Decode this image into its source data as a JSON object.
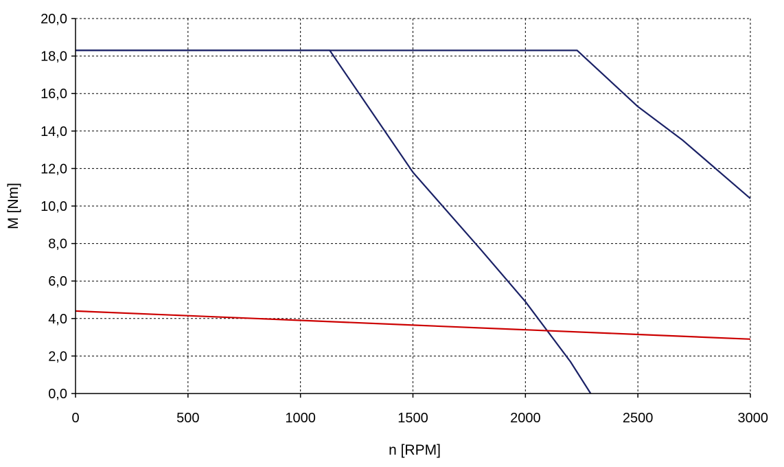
{
  "chart_data": {
    "type": "line",
    "title": "",
    "xlabel": "n [RPM]",
    "ylabel": "M [Nm]",
    "xlim": [
      0,
      3000
    ],
    "ylim": [
      0,
      20
    ],
    "x_ticks": [
      0,
      500,
      1000,
      1500,
      2000,
      2500,
      3000
    ],
    "x_tick_labels": [
      "0",
      "500",
      "1000",
      "1500",
      "2000",
      "2500",
      "3000"
    ],
    "y_ticks": [
      0,
      2,
      4,
      6,
      8,
      10,
      12,
      14,
      16,
      18,
      20
    ],
    "y_tick_labels": [
      "0,0",
      "2,0",
      "4,0",
      "6,0",
      "8,0",
      "10,0",
      "12,0",
      "14,0",
      "16,0",
      "18,0",
      "20,0"
    ],
    "grid": true,
    "grid_style": "dashed",
    "legend": "none",
    "series": [
      {
        "color": "#1a2166",
        "points": [
          [
            0,
            18.3
          ],
          [
            1130,
            18.3
          ],
          [
            1500,
            11.8
          ],
          [
            1800,
            7.7
          ],
          [
            2000,
            4.9
          ],
          [
            2200,
            1.7
          ],
          [
            2290,
            0.0
          ]
        ]
      },
      {
        "color": "#1a2166",
        "points": [
          [
            0,
            18.3
          ],
          [
            2230,
            18.3
          ],
          [
            2500,
            15.3
          ],
          [
            2700,
            13.5
          ],
          [
            3000,
            10.4
          ]
        ]
      },
      {
        "color": "#cc0000",
        "points": [
          [
            0,
            4.4
          ],
          [
            500,
            4.15
          ],
          [
            1000,
            3.9
          ],
          [
            1500,
            3.65
          ],
          [
            2000,
            3.4
          ],
          [
            2500,
            3.15
          ],
          [
            3000,
            2.9
          ]
        ]
      }
    ]
  }
}
